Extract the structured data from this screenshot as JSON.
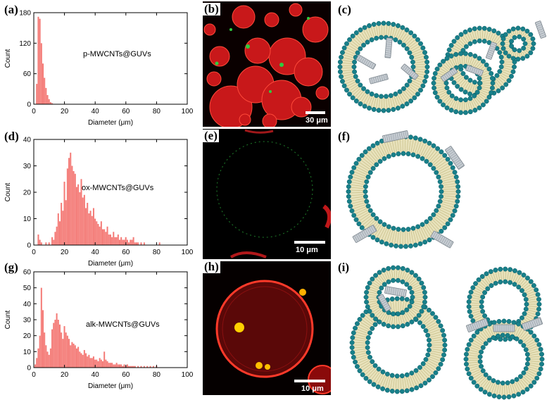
{
  "panels": {
    "a": {
      "letter": "(a)",
      "label": "p-MWCNTs@GUVs"
    },
    "b": {
      "letter": "(b)",
      "scale": "30 μm"
    },
    "c": {
      "letter": "(c)"
    },
    "d": {
      "letter": "(d)",
      "label": "ox-MWCNTs@GUVs"
    },
    "e": {
      "letter": "(e)",
      "scale": "10 μm"
    },
    "f": {
      "letter": "(f)"
    },
    "g": {
      "letter": "(g)",
      "label": "alk-MWCNTs@GUVs"
    },
    "h": {
      "letter": "(h)",
      "scale": "10 μm"
    },
    "i": {
      "letter": "(i)"
    }
  },
  "chart_data": [
    {
      "type": "bar",
      "xlabel": "Diameter (μm)",
      "ylabel": "Count",
      "xlim": [
        0,
        100
      ],
      "ylim": [
        0,
        180
      ],
      "xticks": [
        0,
        20,
        40,
        60,
        80,
        100
      ],
      "yticks": [
        0,
        60,
        120,
        180
      ],
      "bin_width": 1,
      "x": [
        2,
        3,
        4,
        5,
        6,
        7,
        8,
        9,
        10,
        11,
        12
      ],
      "values": [
        40,
        172,
        168,
        120,
        80,
        52,
        32,
        18,
        10,
        4,
        2
      ],
      "bar_color": "#f47a76"
    },
    {
      "type": "bar",
      "xlabel": "Diameter (μm)",
      "ylabel": "Count",
      "xlim": [
        0,
        100
      ],
      "ylim": [
        0,
        40
      ],
      "xticks": [
        0,
        20,
        40,
        60,
        80,
        100
      ],
      "yticks": [
        0,
        10,
        20,
        30,
        40
      ],
      "bin_width": 1,
      "x": [
        3,
        4,
        5,
        8,
        10,
        12,
        13,
        14,
        15,
        16,
        17,
        18,
        19,
        20,
        21,
        22,
        23,
        24,
        25,
        26,
        27,
        28,
        29,
        30,
        31,
        32,
        33,
        34,
        35,
        36,
        37,
        38,
        39,
        40,
        41,
        42,
        43,
        44,
        45,
        46,
        47,
        48,
        49,
        50,
        51,
        52,
        53,
        54,
        55,
        56,
        57,
        58,
        59,
        60,
        61,
        62,
        63,
        64,
        65,
        66,
        67,
        68,
        70,
        72,
        82
      ],
      "values": [
        4,
        2,
        1,
        1,
        1,
        3,
        2,
        5,
        7,
        12,
        9,
        16,
        13,
        24,
        17,
        29,
        33,
        35,
        30,
        28,
        27,
        22,
        23,
        20,
        25,
        18,
        19,
        14,
        16,
        12,
        13,
        11,
        14,
        10,
        9,
        8,
        7,
        9,
        6,
        6,
        5,
        7,
        4,
        4,
        3,
        5,
        3,
        3,
        4,
        2,
        3,
        2,
        2,
        3,
        2,
        1,
        2,
        2,
        3,
        1,
        1,
        1,
        1,
        1,
        1
      ],
      "bar_color": "#f47a76"
    },
    {
      "type": "bar",
      "xlabel": "Diameter (μm)",
      "ylabel": "Count",
      "xlim": [
        0,
        100
      ],
      "ylim": [
        0,
        60
      ],
      "xticks": [
        0,
        20,
        40,
        60,
        80,
        100
      ],
      "yticks": [
        0,
        10,
        20,
        30,
        40,
        50,
        60
      ],
      "bin_width": 1,
      "x": [
        1,
        2,
        3,
        4,
        5,
        6,
        7,
        8,
        9,
        10,
        11,
        12,
        13,
        14,
        15,
        16,
        17,
        18,
        19,
        20,
        21,
        22,
        23,
        24,
        25,
        26,
        27,
        28,
        29,
        30,
        31,
        32,
        33,
        34,
        35,
        36,
        37,
        38,
        39,
        40,
        41,
        42,
        43,
        44,
        45,
        46,
        47,
        48,
        49,
        50,
        51,
        52,
        53,
        54,
        55,
        56,
        57,
        58,
        59,
        60,
        61,
        62,
        63,
        64,
        65,
        66,
        68,
        70,
        72,
        74,
        76,
        78,
        80
      ],
      "values": [
        2,
        6,
        12,
        20,
        50,
        36,
        22,
        14,
        10,
        8,
        12,
        24,
        28,
        30,
        34,
        30,
        27,
        22,
        18,
        26,
        22,
        20,
        18,
        14,
        16,
        15,
        14,
        12,
        13,
        10,
        9,
        8,
        11,
        9,
        7,
        8,
        6,
        6,
        7,
        5,
        5,
        4,
        6,
        5,
        4,
        10,
        5,
        4,
        3,
        3,
        3,
        2,
        2,
        3,
        2,
        2,
        2,
        1,
        2,
        1,
        2,
        1,
        1,
        1,
        1,
        1,
        1,
        1,
        1,
        1,
        1,
        1,
        1
      ],
      "bar_color": "#f47a76"
    }
  ]
}
